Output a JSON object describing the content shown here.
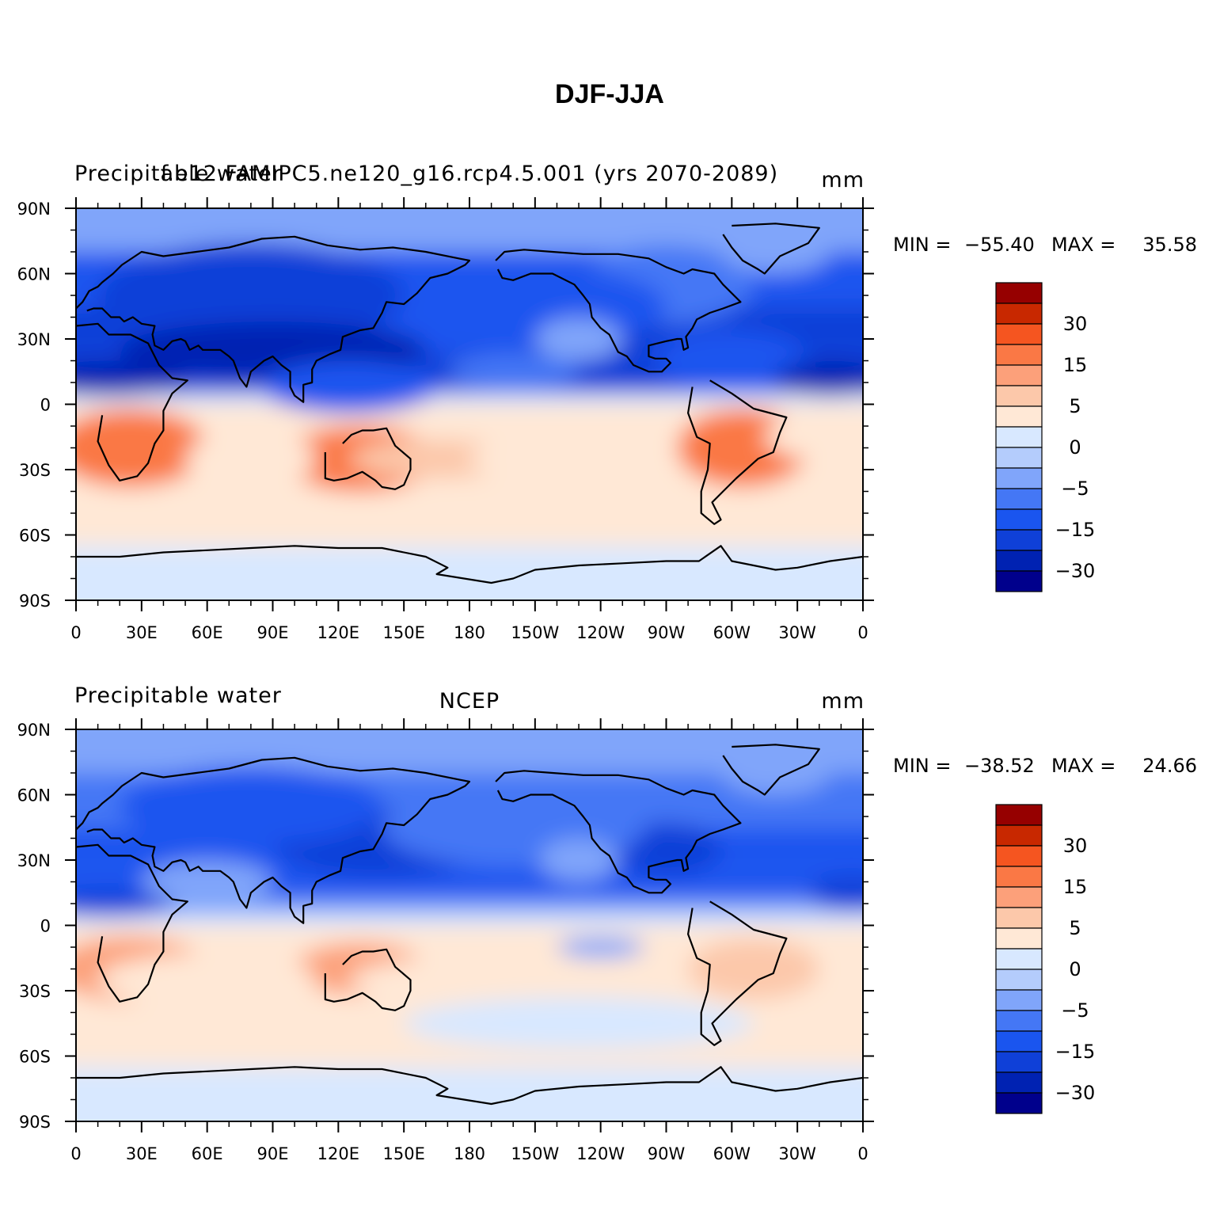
{
  "figure_title": "DJF-JJA",
  "chart_data": [
    {
      "type": "heatmap",
      "panel": "top",
      "left_string": "Precipitable water",
      "center_string": "f.e12.FAMIPC5.ne120_g16.rcp4.5.001 (yrs 2070-2089)",
      "right_string": "mm",
      "min_label": "MIN =",
      "min_value": "−55.40",
      "max_label": "MAX =",
      "max_value": "35.58",
      "x_ticks": [
        "0",
        "30E",
        "60E",
        "90E",
        "120E",
        "150E",
        "180",
        "150W",
        "120W",
        "90W",
        "60W",
        "30W",
        "0"
      ],
      "y_ticks": [
        "90N",
        "60N",
        "30N",
        "0",
        "30S",
        "60S",
        "90S"
      ],
      "xlim": [
        0,
        360
      ],
      "ylim": [
        -90,
        90
      ],
      "colorbar_labels": [
        "30",
        "15",
        "5",
        "0",
        "−5",
        "−15",
        "−30"
      ],
      "colorbar_levels": [
        -40,
        -30,
        -20,
        -15,
        -10,
        -5,
        0,
        5,
        10,
        15,
        20,
        30,
        40
      ],
      "features": [
        {
          "lon": 270,
          "lat": 55,
          "r": [
            40,
            18
          ],
          "value": -10
        },
        {
          "lon": 300,
          "lat": 20,
          "r": [
            35,
            14
          ],
          "value": -15
        },
        {
          "lon": 180,
          "lat": 45,
          "r": [
            90,
            22
          ],
          "value": -15
        },
        {
          "lon": 80,
          "lat": 50,
          "r": [
            70,
            24
          ],
          "value": -25
        },
        {
          "lon": 90,
          "lat": 25,
          "r": [
            70,
            13
          ],
          "value": -35
        },
        {
          "lon": 15,
          "lat": 12,
          "r": [
            35,
            8
          ],
          "value": -35
        },
        {
          "lon": 345,
          "lat": 12,
          "r": [
            25,
            8
          ],
          "value": -30
        },
        {
          "lon": 125,
          "lat": 8,
          "r": [
            40,
            12
          ],
          "value": -15
        },
        {
          "lon": 200,
          "lat": 15,
          "r": [
            30,
            8
          ],
          "value": -10
        },
        {
          "lon": 230,
          "lat": 30,
          "r": [
            20,
            10
          ],
          "value": -5
        },
        {
          "lon": 320,
          "lat": 70,
          "r": [
            25,
            10
          ],
          "value": -5
        },
        {
          "lon": 25,
          "lat": -20,
          "r": [
            35,
            18
          ],
          "value": 22
        },
        {
          "lon": 130,
          "lat": -25,
          "r": [
            35,
            15
          ],
          "value": 22
        },
        {
          "lon": 305,
          "lat": -20,
          "r": [
            30,
            18
          ],
          "value": 25
        },
        {
          "lon": 165,
          "lat": -25,
          "r": [
            40,
            9
          ],
          "value": 15
        },
        {
          "lon": 210,
          "lat": -25,
          "r": [
            30,
            9
          ],
          "value": 10
        },
        {
          "lon": 340,
          "lat": -15,
          "r": [
            25,
            10
          ],
          "value": 7
        },
        {
          "lon": 80,
          "lat": -25,
          "r": [
            30,
            12
          ],
          "value": 10
        }
      ]
    },
    {
      "type": "heatmap",
      "panel": "bottom",
      "left_string": "Precipitable water",
      "center_string": "NCEP",
      "right_string": "mm",
      "min_label": "MIN =",
      "min_value": "−38.52",
      "max_label": "MAX =",
      "max_value": "24.66",
      "x_ticks": [
        "0",
        "30E",
        "60E",
        "90E",
        "120E",
        "150E",
        "180",
        "150W",
        "120W",
        "90W",
        "60W",
        "30W",
        "0"
      ],
      "y_ticks": [
        "90N",
        "60N",
        "30N",
        "0",
        "30S",
        "60S",
        "90S"
      ],
      "xlim": [
        0,
        360
      ],
      "ylim": [
        -90,
        90
      ],
      "colorbar_labels": [
        "30",
        "15",
        "5",
        "0",
        "−5",
        "−15",
        "−30"
      ],
      "colorbar_levels": [
        -40,
        -30,
        -20,
        -15,
        -10,
        -5,
        0,
        5,
        10,
        15,
        20,
        30,
        40
      ],
      "features": [
        {
          "lon": 140,
          "lat": 38,
          "r": [
            50,
            16
          ],
          "value": -25
        },
        {
          "lon": 270,
          "lat": 35,
          "r": [
            25,
            12
          ],
          "value": -25
        },
        {
          "lon": 200,
          "lat": 45,
          "r": [
            60,
            18
          ],
          "value": -12
        },
        {
          "lon": 80,
          "lat": 55,
          "r": [
            60,
            18
          ],
          "value": -15
        },
        {
          "lon": 15,
          "lat": 10,
          "r": [
            30,
            6
          ],
          "value": -25
        },
        {
          "lon": 355,
          "lat": 15,
          "r": [
            20,
            8
          ],
          "value": -20
        },
        {
          "lon": 230,
          "lat": 30,
          "r": [
            18,
            10
          ],
          "value": -5
        },
        {
          "lon": 320,
          "lat": 70,
          "r": [
            25,
            10
          ],
          "value": -5
        },
        {
          "lon": 60,
          "lat": 20,
          "r": [
            30,
            10
          ],
          "value": -8
        },
        {
          "lon": 25,
          "lat": -20,
          "r": [
            35,
            15
          ],
          "value": 18
        },
        {
          "lon": 130,
          "lat": -20,
          "r": [
            30,
            12
          ],
          "value": 18
        },
        {
          "lon": 310,
          "lat": -20,
          "r": [
            30,
            14
          ],
          "value": 15
        },
        {
          "lon": 60,
          "lat": -25,
          "r": [
            50,
            12
          ],
          "value": 10
        },
        {
          "lon": 175,
          "lat": -25,
          "r": [
            50,
            10
          ],
          "value": 10
        },
        {
          "lon": 240,
          "lat": -10,
          "r": [
            20,
            5
          ],
          "value": -5
        },
        {
          "lon": 230,
          "lat": -45,
          "r": [
            80,
            12
          ],
          "value": 5
        }
      ]
    }
  ],
  "colors": {
    "scale": [
      "#00008c",
      "#0022b2",
      "#0f40d8",
      "#1a55ef",
      "#4477f5",
      "#80a5fa",
      "#b4ccfc",
      "#d8e8ff",
      "#ffe8d6",
      "#fcc8aa",
      "#fca07a",
      "#fa7845",
      "#f55520",
      "#c82800",
      "#960000"
    ]
  }
}
